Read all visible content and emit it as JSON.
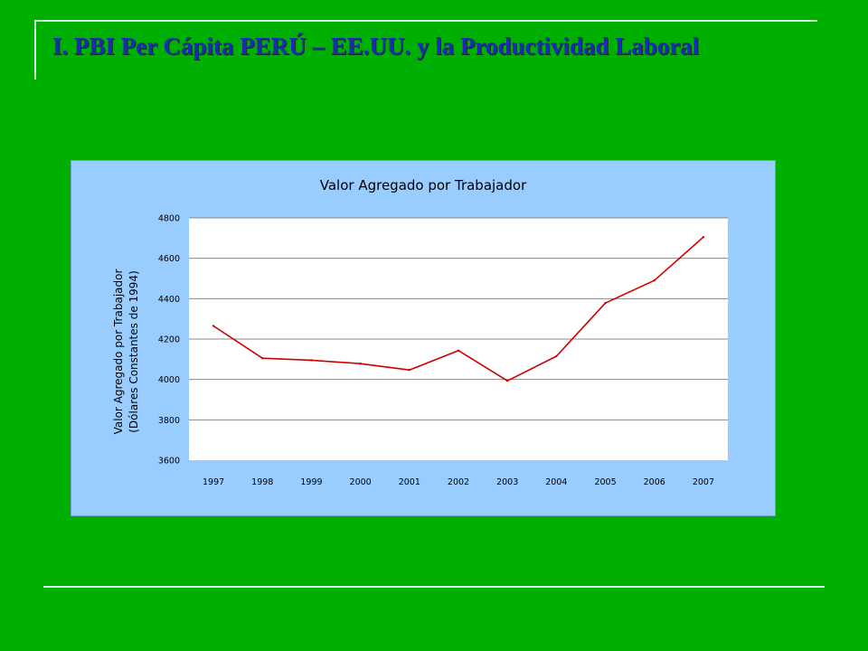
{
  "slide": {
    "title": "I. PBI Per Cápita PERÚ – EE.UU. y la Productividad Laboral"
  },
  "chart_data": {
    "type": "line",
    "title": "Valor Agregado por Trabajador",
    "xlabel": "",
    "ylabel": [
      "Valor Agregado por Trabajador",
      "(Dólares Constantes de 1994)"
    ],
    "ylim": [
      3600,
      4800
    ],
    "yticks": [
      3600,
      3800,
      4000,
      4200,
      4400,
      4600,
      4800
    ],
    "categories": [
      "1997",
      "1998",
      "1999",
      "2000",
      "2001",
      "2002",
      "2003",
      "2004",
      "2005",
      "2006",
      "2007"
    ],
    "series": [
      {
        "values": [
          4265,
          4105,
          4095,
          4078,
          4047,
          4143,
          3993,
          4115,
          4378,
          4490,
          4705
        ]
      }
    ],
    "grid": true,
    "legend": "none",
    "colors": {
      "line": "#cc0000",
      "plot_bg": "#ffffff",
      "panel_bg": "#99ccff",
      "grid": "#888888"
    }
  }
}
